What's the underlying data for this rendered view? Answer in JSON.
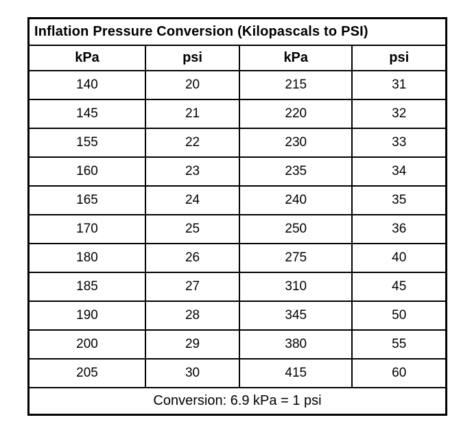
{
  "chart_data": {
    "type": "table",
    "title": "Inflation Pressure Conversion (Kilopascals to PSI)",
    "columns": [
      "kPa",
      "psi",
      "kPa",
      "psi"
    ],
    "rows": [
      [
        "140",
        "20",
        "215",
        "31"
      ],
      [
        "145",
        "21",
        "220",
        "32"
      ],
      [
        "155",
        "22",
        "230",
        "33"
      ],
      [
        "160",
        "23",
        "235",
        "34"
      ],
      [
        "165",
        "24",
        "240",
        "35"
      ],
      [
        "170",
        "25",
        "250",
        "36"
      ],
      [
        "180",
        "26",
        "275",
        "40"
      ],
      [
        "185",
        "27",
        "310",
        "45"
      ],
      [
        "190",
        "28",
        "345",
        "50"
      ],
      [
        "200",
        "29",
        "380",
        "55"
      ],
      [
        "205",
        "30",
        "415",
        "60"
      ]
    ],
    "footer": "Conversion: 6.9 kPa = 1 psi",
    "layout": {
      "grid": "on",
      "border_color": "#000000",
      "background_color": "#ffffff",
      "text_color": "#000000"
    }
  }
}
